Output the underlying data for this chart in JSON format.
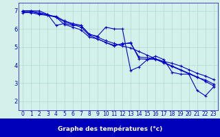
{
  "title": "Graphe des températures (°c)",
  "background_color": "#d4f0eb",
  "grid_color": "#b0d8d2",
  "line_color": "#0000cc",
  "xlim_min": -0.5,
  "xlim_max": 23.5,
  "ylim_min": 1.5,
  "ylim_max": 7.45,
  "xticks": [
    0,
    1,
    2,
    3,
    4,
    5,
    6,
    7,
    8,
    9,
    10,
    11,
    12,
    13,
    14,
    15,
    16,
    17,
    18,
    19,
    20,
    21,
    22,
    23
  ],
  "yticks": [
    2,
    3,
    4,
    5,
    6,
    7
  ],
  "series1": [
    7.0,
    7.0,
    7.0,
    6.8,
    6.2,
    6.3,
    6.2,
    6.2,
    5.7,
    5.6,
    6.1,
    6.0,
    6.0,
    3.7,
    3.9,
    4.3,
    4.5,
    4.3,
    3.6,
    3.5,
    3.5,
    2.6,
    2.3,
    2.8
  ],
  "series2": [
    6.9,
    6.9,
    6.8,
    6.75,
    6.7,
    6.45,
    6.3,
    6.2,
    5.72,
    5.55,
    5.35,
    5.2,
    5.05,
    4.95,
    4.75,
    4.55,
    4.35,
    4.2,
    4.1,
    3.95,
    3.75,
    3.55,
    3.4,
    3.2
  ],
  "series3": [
    6.95,
    6.95,
    6.85,
    6.75,
    6.65,
    6.4,
    6.25,
    6.1,
    5.65,
    5.45,
    5.25,
    5.1,
    5.15,
    5.25,
    4.35,
    4.32,
    4.32,
    4.12,
    3.92,
    3.72,
    3.52,
    3.32,
    3.18,
    2.95
  ],
  "series4": [
    7.0,
    7.0,
    6.9,
    6.8,
    6.65,
    6.25,
    6.1,
    5.95,
    5.55,
    5.45,
    5.25,
    5.05,
    5.2,
    5.2,
    4.45,
    4.4,
    4.35,
    4.15,
    3.95,
    3.75,
    3.55,
    3.35,
    3.1,
    2.85
  ],
  "bottom_bar_color": "#0000bb",
  "bottom_bar_height": 0.135,
  "label_fontsize": 5.5,
  "ylabel_fontsize": 6.0,
  "title_fontsize": 6.5
}
